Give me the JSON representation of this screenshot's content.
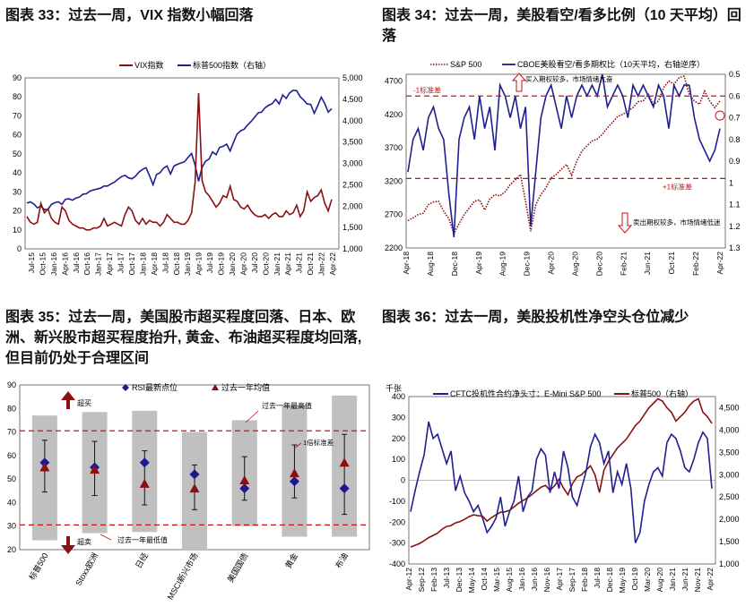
{
  "titles": {
    "c1": "图表 33：过去一周，VIX 指数小幅回落",
    "c2_line1": "图表 34：过去一周，美股看空/看多比例（10 天平均）回",
    "c2_line2": "落",
    "c3_line1": "图表 35：过去一周，美国股市超买程度回落、日本、欧",
    "c3_line2": "洲、新兴股市超买程度抬升, 黄金、布油超买程度均回落,",
    "c3_line3": "但目前仍处于合理区间",
    "c4": "图表 36：过去一周，美股投机性净空头仓位减少"
  },
  "colors": {
    "red": "#8b1010",
    "blue": "#1f1f8f",
    "dashed_red": "#cc1111",
    "gray": "#c0c0c0",
    "marker_blue": "#1a1a8c",
    "marker_red": "#8b1010"
  },
  "chart_data": [
    {
      "type": "line",
      "series": [
        {
          "name": "VIX指数",
          "axis": "left",
          "values": [
            17,
            14,
            13,
            14,
            24,
            19,
            21,
            16,
            14,
            13,
            22,
            20,
            15,
            13,
            12,
            11,
            11,
            10,
            10,
            11,
            11,
            12,
            16,
            12,
            13,
            14,
            13,
            12,
            18,
            22,
            20,
            15,
            13,
            16,
            13,
            15,
            14,
            14,
            12,
            14,
            18,
            16,
            14,
            14,
            13,
            13,
            15,
            19,
            35,
            82,
            36,
            30,
            28,
            25,
            22,
            24,
            28,
            27,
            33,
            26,
            25,
            22,
            21,
            23,
            20,
            18,
            17,
            17,
            18,
            16,
            18,
            19,
            17,
            17,
            20,
            18,
            19,
            23,
            17,
            20,
            30,
            25,
            27,
            28,
            31,
            24,
            20,
            26
          ]
        },
        {
          "name": "标普500指数（右轴）",
          "axis": "right",
          "values": [
            2070,
            2100,
            2050,
            1960,
            2000,
            1920,
            1920,
            2040,
            2080,
            2100,
            2040,
            2160,
            2170,
            2140,
            2190,
            2210,
            2280,
            2290,
            2350,
            2380,
            2400,
            2420,
            2470,
            2470,
            2520,
            2560,
            2630,
            2690,
            2720,
            2660,
            2640,
            2700,
            2800,
            2860,
            2900,
            2710,
            2500,
            2740,
            2780,
            2890,
            2940,
            2750,
            2940,
            2980,
            3010,
            3040,
            3140,
            3230,
            2960,
            2580,
            2910,
            3050,
            3100,
            3270,
            3200,
            3370,
            3400,
            3450,
            3290,
            3500,
            3690,
            3760,
            3800,
            3900,
            3980,
            4080,
            4180,
            4200,
            4300,
            4360,
            4400,
            4500,
            4390,
            4600,
            4520,
            4650,
            4710,
            4700,
            4560,
            4480,
            4390,
            4380,
            4170,
            4350,
            4550,
            4400,
            4200,
            4280
          ]
        }
      ],
      "x_ticks": [
        "Jul-15",
        "Oct-15",
        "Jan-16",
        "Apr-16",
        "Jul-16",
        "Oct-16",
        "Jan-17",
        "Apr-17",
        "Jul-17",
        "Oct-17",
        "Jan-18",
        "Apr-18",
        "Jul-18",
        "Oct-18",
        "Jan-19",
        "Apr-19",
        "Jul-19",
        "Oct-19",
        "Jan-20",
        "Apr-20",
        "Jul-20",
        "Oct-20",
        "Jan-21",
        "Apr-21",
        "Jul-21",
        "Oct-21",
        "Jan-22",
        "Apr-22"
      ],
      "y_left_ticks": [
        "0",
        "10",
        "20",
        "30",
        "40",
        "50",
        "60",
        "70",
        "80",
        "90"
      ],
      "y_right_ticks": [
        "1,000",
        "1,500",
        "2,000",
        "2,500",
        "3,000",
        "3,500",
        "4,000",
        "4,500",
        "5,000"
      ],
      "ylim_left": [
        0,
        90
      ],
      "ylim_right": [
        1000,
        5000
      ],
      "legend": [
        "VIX指数",
        "标普500指数（右轴）"
      ],
      "legend_position": "top-right"
    },
    {
      "type": "line",
      "series": [
        {
          "name": "S&P 500",
          "axis": "left",
          "values": [
            2610,
            2650,
            2700,
            2720,
            2850,
            2890,
            2900,
            2750,
            2640,
            2420,
            2560,
            2700,
            2800,
            2900,
            2920,
            2770,
            2930,
            3000,
            2980,
            3040,
            3150,
            3220,
            3300,
            2900,
            2450,
            2850,
            3000,
            3100,
            3250,
            3300,
            3380,
            3450,
            3290,
            3500,
            3650,
            3730,
            3800,
            3830,
            3900,
            4000,
            4080,
            4170,
            4200,
            4250,
            4300,
            4390,
            4400,
            4500,
            4350,
            4400,
            4600,
            4700,
            4650,
            4750,
            4770,
            4500,
            4400,
            4350,
            4550,
            4400,
            4300,
            4400
          ]
        },
        {
          "name": "CBOE美股看空/看多期权比（10天平均，右轴逆序）",
          "axis": "right",
          "values": [
            0.95,
            0.8,
            0.75,
            0.85,
            0.7,
            0.65,
            0.75,
            0.8,
            1.05,
            1.25,
            0.8,
            0.7,
            0.65,
            0.8,
            0.6,
            0.75,
            0.65,
            0.85,
            0.55,
            0.6,
            0.7,
            0.6,
            0.75,
            0.65,
            1.2,
            0.95,
            0.7,
            0.6,
            0.55,
            0.65,
            0.75,
            0.6,
            0.7,
            0.6,
            0.55,
            0.6,
            0.55,
            0.6,
            0.5,
            0.65,
            0.6,
            0.55,
            0.6,
            0.7,
            0.55,
            0.6,
            0.55,
            0.6,
            0.65,
            0.55,
            0.6,
            0.75,
            0.55,
            0.6,
            0.55,
            0.55,
            0.7,
            0.8,
            0.85,
            0.9,
            0.85,
            0.75
          ]
        }
      ],
      "x_ticks": [
        "Apr-18",
        "Aug-18",
        "Dec-18",
        "Apr-19",
        "Aug-19",
        "Dec-19",
        "Apr-20",
        "Aug-20",
        "Dec-20",
        "Feb-21",
        "Jun-21",
        "Oct-21",
        "Feb-22",
        "Apr-22"
      ],
      "y_left_ticks": [
        "2200",
        "2700",
        "3200",
        "3700",
        "4200",
        "4700"
      ],
      "y_right_ticks": [
        "0.5",
        "0.6",
        "0.7",
        "0.8",
        "0.9",
        "1",
        "1.1",
        "1.2",
        "1.3"
      ],
      "ylim_left": [
        2200,
        4800
      ],
      "ylim_right": [
        0.5,
        1.3
      ],
      "reference_lines": [
        {
          "label": "-1标准差",
          "value": 0.6
        },
        {
          "label": "+1标准差",
          "value": 0.98
        }
      ],
      "annotations": {
        "top": "买入期权较多，市场情绪亢奋",
        "bottom": "卖出期权较多，市场情绪低迷"
      },
      "legend": [
        "S&P 500",
        "CBOE美股看空/看多期权比（10天平均，右轴逆序）"
      ],
      "legend_position": "top"
    },
    {
      "type": "bar",
      "categories": [
        "标普500",
        "Stoxx欧洲",
        "日经",
        "MSCI新兴市场",
        "美国国债",
        "黄金",
        "布油"
      ],
      "range_low": [
        24,
        27,
        27.5,
        20,
        30,
        25.5,
        25.5
      ],
      "range_high": [
        77,
        78.5,
        79,
        70,
        75,
        81.5,
        85.5
      ],
      "rsi_latest": [
        57,
        55,
        57,
        52,
        46,
        49,
        46
      ],
      "avg_1y": [
        55,
        54,
        48,
        46,
        49.5,
        52.5,
        57
      ],
      "std_low": [
        44.5,
        43,
        39,
        37,
        41,
        42,
        35
      ],
      "std_high": [
        66.5,
        66,
        62,
        56,
        59.5,
        64.5,
        69
      ],
      "overbought_line": 70.5,
      "oversold_line": 30.5,
      "ylim": [
        20,
        90
      ],
      "y_ticks": [
        "20",
        "30",
        "40",
        "50",
        "60",
        "70",
        "80",
        "90"
      ],
      "legend": [
        "RSI最新点位",
        "过去一年均值"
      ],
      "annotations": {
        "overbought": "超买",
        "oversold": "超卖",
        "high": "过去一年最高值",
        "low": "过去一年最低值",
        "std": "1倍标准差"
      }
    },
    {
      "type": "line",
      "series": [
        {
          "name": "CFTC投机性合约净头寸：E-Mini S&P 500",
          "axis": "left",
          "values": [
            -150,
            -50,
            40,
            120,
            280,
            200,
            220,
            150,
            80,
            140,
            -50,
            20,
            -60,
            -100,
            -150,
            -120,
            -180,
            -250,
            -220,
            -180,
            -80,
            -220,
            -150,
            -100,
            20,
            -150,
            -80,
            -50,
            100,
            150,
            120,
            -60,
            40,
            -40,
            140,
            60,
            -80,
            -120,
            -40,
            40,
            160,
            220,
            180,
            80,
            140,
            -60,
            40,
            -20,
            80,
            -40,
            -300,
            -250,
            -100,
            -20,
            40,
            60,
            20,
            180,
            220,
            200,
            140,
            60,
            40,
            100,
            180,
            230,
            200,
            -40
          ]
        },
        {
          "name": "标普500（右轴）",
          "axis": "right",
          "values": [
            1380,
            1420,
            1460,
            1520,
            1590,
            1640,
            1690,
            1780,
            1840,
            1860,
            1920,
            1950,
            2000,
            2060,
            2100,
            2080,
            2070,
            1960,
            2040,
            2100,
            2160,
            2170,
            2200,
            2280,
            2360,
            2420,
            2480,
            2560,
            2640,
            2720,
            2760,
            2650,
            2750,
            2900,
            2700,
            2550,
            2800,
            2950,
            3000,
            3100,
            3200,
            3000,
            2600,
            3100,
            3300,
            3450,
            3600,
            3700,
            3800,
            3950,
            4100,
            4200,
            4350,
            4500,
            4600,
            4700,
            4650,
            4500,
            4400,
            4200,
            4300,
            4400,
            4550,
            4650,
            4700,
            4400,
            4300,
            4150
          ]
        }
      ],
      "x_ticks": [
        "Apr-12",
        "Sep-12",
        "Feb-13",
        "Jul-13",
        "Dec-13",
        "May-14",
        "Oct-14",
        "Mar-15",
        "Aug-15",
        "Jan-16",
        "Jun-16",
        "Nov-16",
        "Apr-17",
        "Sep-17",
        "Feb-18",
        "Jul-18",
        "Dec-18",
        "May-19",
        "Oct-19",
        "Mar-20",
        "Aug-20",
        "Jan-21",
        "Jun-21",
        "Nov-21",
        "Apr-22"
      ],
      "y_left_ticks": [
        "-400",
        "-300",
        "-200",
        "-100",
        "0",
        "100",
        "200",
        "300",
        "400"
      ],
      "y_right_ticks": [
        "1,000",
        "1,500",
        "2,000",
        "2,500",
        "3,000",
        "3,500",
        "4,000",
        "4,500"
      ],
      "ylim_left": [
        -400,
        400
      ],
      "ylim_right": [
        1000,
        4750
      ],
      "left_unit": "千张",
      "legend": [
        "CFTC投机性合约净头寸：E-Mini S&P 500",
        "标普500（右轴）"
      ],
      "legend_position": "top"
    }
  ]
}
